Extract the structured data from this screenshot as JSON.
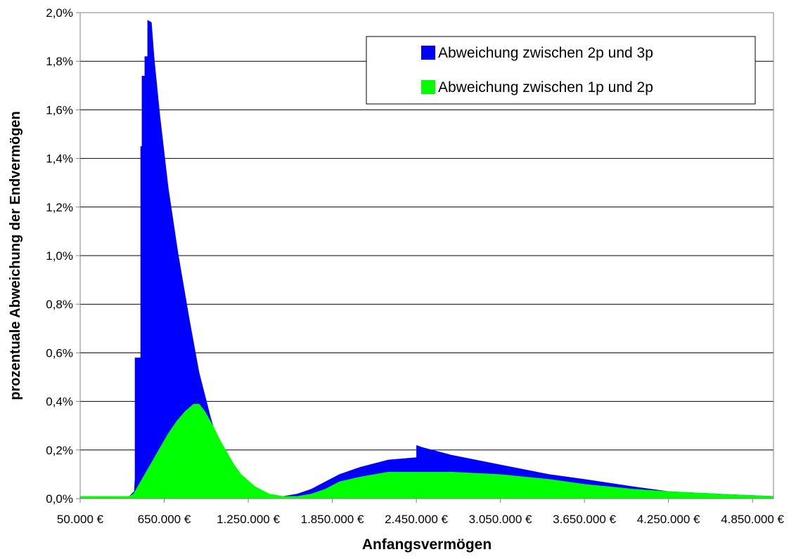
{
  "chart_data": {
    "type": "area",
    "xlabel": "Anfangsvermögen",
    "ylabel": "prozentuale Abweichung der Endvermögen",
    "xlim": [
      50000,
      5000000
    ],
    "ylim": [
      0,
      0.02
    ],
    "x_ticks": [
      50000,
      650000,
      1250000,
      1850000,
      2450000,
      3050000,
      3650000,
      4250000,
      4850000
    ],
    "x_tick_labels": [
      "50.000 €",
      "650.000 €",
      "1.250.000 €",
      "1.850.000 €",
      "2.450.000 €",
      "3.050.000 €",
      "3.650.000 €",
      "4.250.000 €",
      "4.850.000 €"
    ],
    "y_ticks": [
      0,
      0.002,
      0.004,
      0.006,
      0.008,
      0.01,
      0.012,
      0.014,
      0.016,
      0.018,
      0.02
    ],
    "y_tick_labels": [
      "0,0%",
      "0,2%",
      "0,4%",
      "0,6%",
      "0,8%",
      "1,0%",
      "1,2%",
      "1,4%",
      "1,6%",
      "1,8%",
      "2,0%"
    ],
    "grid": true,
    "legend_position": "top-right",
    "series": [
      {
        "name": "Abweichung zwischen 2p und 3p",
        "color": "#0000ff",
        "x": [
          50000,
          400000,
          435000,
          440000,
          440000,
          480000,
          480000,
          490000,
          490000,
          510000,
          510000,
          530000,
          530000,
          560000,
          580000,
          620000,
          680000,
          750000,
          830000,
          900000,
          980000,
          1050000,
          1120000,
          1200000,
          1300000,
          1400000,
          1500000,
          1600000,
          1700000,
          1800000,
          1900000,
          2050000,
          2250000,
          2450000,
          2450000,
          2500000,
          2700000,
          3050000,
          3400000,
          3650000,
          4000000,
          4250000,
          4600000,
          5000000
        ],
        "values": [
          0.0001,
          0.0001,
          0.0003,
          0.0008,
          0.0058,
          0.0058,
          0.0145,
          0.0145,
          0.0174,
          0.0174,
          0.0182,
          0.0182,
          0.0197,
          0.0196,
          0.0181,
          0.0158,
          0.0128,
          0.0101,
          0.0074,
          0.0052,
          0.0034,
          0.002,
          0.001,
          0.0005,
          0.0002,
          0.0001,
          0.0001,
          0.0002,
          0.0004,
          0.0007,
          0.001,
          0.0013,
          0.0016,
          0.0017,
          0.0022,
          0.0021,
          0.0018,
          0.0014,
          0.001,
          0.0008,
          0.0005,
          0.0003,
          0.0002,
          0.0001
        ]
      },
      {
        "name": "Abweichung zwischen 1p und 2p",
        "color": "#00ff00",
        "x": [
          50000,
          400000,
          430000,
          460000,
          500000,
          560000,
          620000,
          680000,
          740000,
          800000,
          860000,
          900000,
          940000,
          1000000,
          1050000,
          1100000,
          1150000,
          1200000,
          1300000,
          1400000,
          1500000,
          1600000,
          1700000,
          1800000,
          1900000,
          2050000,
          2250000,
          2450000,
          2700000,
          3050000,
          3400000,
          3650000,
          4000000,
          4250000,
          4600000,
          5000000
        ],
        "values": [
          0.0001,
          0.0001,
          0.0002,
          0.0005,
          0.0009,
          0.0015,
          0.0021,
          0.0027,
          0.0032,
          0.0036,
          0.0039,
          0.0039,
          0.0036,
          0.003,
          0.0024,
          0.0019,
          0.0014,
          0.001,
          0.0005,
          0.0002,
          0.0001,
          0.0001,
          0.0002,
          0.0004,
          0.0007,
          0.0009,
          0.0011,
          0.0011,
          0.0011,
          0.001,
          0.0008,
          0.0006,
          0.0004,
          0.0003,
          0.0002,
          0.0001
        ]
      }
    ]
  }
}
